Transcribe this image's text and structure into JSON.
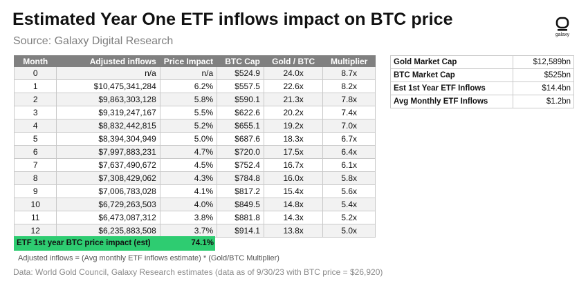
{
  "header": {
    "title": "Estimated Year One ETF inflows impact on BTC price",
    "subtitle": "Source: Galaxy Digital Research",
    "logo_text": "galaxy"
  },
  "chart_data": {
    "type": "table",
    "columns": [
      "Month",
      "Adjusted inflows",
      "Price Impact",
      "BTC Cap",
      "Gold / BTC",
      "Multiplier"
    ],
    "rows": [
      [
        "0",
        "n/a",
        "n/a",
        "$524.9",
        "24.0x",
        "8.7x"
      ],
      [
        "1",
        "$10,475,341,284",
        "6.2%",
        "$557.5",
        "22.6x",
        "8.2x"
      ],
      [
        "2",
        "$9,863,303,128",
        "5.8%",
        "$590.1",
        "21.3x",
        "7.8x"
      ],
      [
        "3",
        "$9,319,247,167",
        "5.5%",
        "$622.6",
        "20.2x",
        "7.4x"
      ],
      [
        "4",
        "$8,832,442,815",
        "5.2%",
        "$655.1",
        "19.2x",
        "7.0x"
      ],
      [
        "5",
        "$8,394,304,949",
        "5.0%",
        "$687.6",
        "18.3x",
        "6.7x"
      ],
      [
        "6",
        "$7,997,883,231",
        "4.7%",
        "$720.0",
        "17.5x",
        "6.4x"
      ],
      [
        "7",
        "$7,637,490,672",
        "4.5%",
        "$752.4",
        "16.7x",
        "6.1x"
      ],
      [
        "8",
        "$7,308,429,062",
        "4.3%",
        "$784.8",
        "16.0x",
        "5.8x"
      ],
      [
        "9",
        "$7,006,783,028",
        "4.1%",
        "$817.2",
        "15.4x",
        "5.6x"
      ],
      [
        "10",
        "$6,729,263,503",
        "4.0%",
        "$849.5",
        "14.8x",
        "5.4x"
      ],
      [
        "11",
        "$6,473,087,312",
        "3.8%",
        "$881.8",
        "14.3x",
        "5.2x"
      ],
      [
        "12",
        "$6,235,883,508",
        "3.7%",
        "$914.1",
        "13.8x",
        "5.0x"
      ]
    ],
    "summary": {
      "label": "ETF 1st year BTC price impact (est)",
      "value": "74.1%"
    },
    "side_table": [
      {
        "label": "Gold Market Cap",
        "value": "$12,589bn"
      },
      {
        "label": "BTC Market Cap",
        "value": "$525bn"
      },
      {
        "label": "Est 1st Year ETF Inflows",
        "value": "$14.4bn"
      },
      {
        "label": "Avg Monthly ETF Inflows",
        "value": "$1.2bn"
      }
    ]
  },
  "notes": {
    "formula": "Adjusted inflows = (Avg monthly ETF inflows estimate) * (Gold/BTC Multiplier)",
    "footer": "Data: World Gold Council, Galaxy Research estimates (data as of 9/30/23 with BTC price = $26,920)"
  },
  "colors": {
    "header_bg": "#808080",
    "highlight_green": "#2ecc71",
    "stripe": "#f2f2f2"
  }
}
